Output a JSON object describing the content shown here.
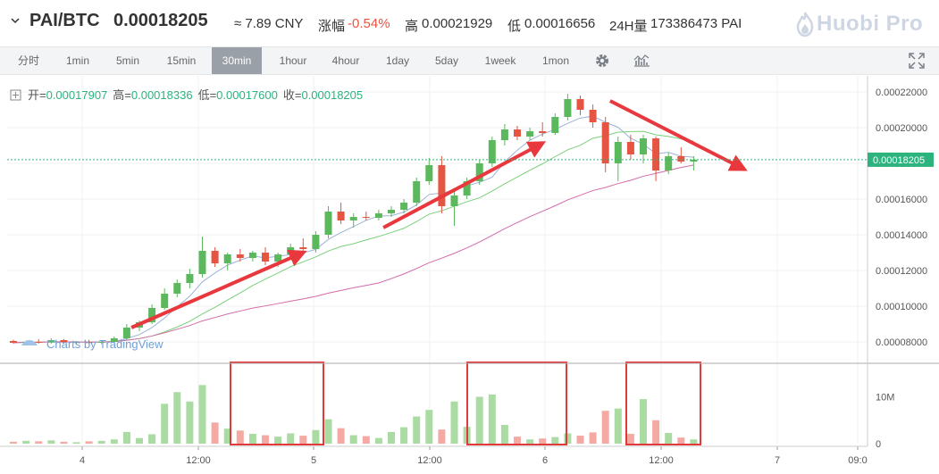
{
  "header": {
    "pair": "PAI/BTC",
    "price": "0.00018205",
    "cny": "≈ 7.89 CNY",
    "change_label": "涨幅",
    "change_value": "-0.54%",
    "high_label": "高",
    "high_value": "0.00021929",
    "low_label": "低",
    "low_value": "0.00016656",
    "volume_label": "24H量",
    "volume_value": "173386473 PAI",
    "logo": "Huobi Pro"
  },
  "toolbar": {
    "intervals": [
      "分时",
      "1min",
      "5min",
      "15min",
      "30min",
      "1hour",
      "4hour",
      "1day",
      "5day",
      "1week",
      "1mon"
    ],
    "active": "30min",
    "icons": [
      "settings-icon",
      "indicators-icon",
      "fullscreen-icon"
    ]
  },
  "ohlc": {
    "open_label": "开=",
    "open_value": "0.00017907",
    "high_label": "高=",
    "high_value": "0.00018336",
    "low_label": "低=",
    "low_value": "0.00017600",
    "close_label": "收=",
    "close_value": "0.00018205"
  },
  "watermark": "Charts by TradingView",
  "colors": {
    "up": "#5cb85c",
    "down": "#e55541",
    "ma_fast": "#9db2d8",
    "ma_mid": "#7bcf7b",
    "ma_slow": "#d46aa8",
    "arrow": "#e8383d",
    "box": "#e03a3a"
  },
  "chart_data": {
    "type": "candlestick",
    "price_axis_ticks": [
      "0.00022000",
      "0.00020000",
      "0.00018000",
      "0.00016000",
      "0.00014000",
      "0.00012000",
      "0.00010000",
      "0.00008000"
    ],
    "price_axis_values": [
      0.00022,
      0.0002,
      0.00018,
      0.00016,
      0.00014,
      0.00012,
      0.0001,
      8e-05
    ],
    "last_price_label": "0.00018205",
    "last_price": 0.00018205,
    "volume_axis_ticks": [
      "10M",
      "0"
    ],
    "volume_axis_values": [
      10000000,
      0
    ],
    "time_axis_ticks": [
      "4",
      "12:00",
      "5",
      "12:00",
      "6",
      "12:00",
      "7",
      "09:0"
    ],
    "time_axis_positions": [
      0.5,
      6,
      11.5,
      17,
      22.5,
      28,
      33.5,
      39
    ],
    "time_axis_unit": "hours_after_first_label_minus_offset",
    "ylim": [
      6.9e-05,
      0.000229
    ],
    "vlim": [
      0,
      16000000
    ],
    "candles": [
      {
        "t": 0,
        "o": 8.05e-05,
        "h": 8.12e-05,
        "l": 7.9e-05,
        "c": 7.95e-05,
        "v": 400000
      },
      {
        "t": 1,
        "o": 7.95e-05,
        "h": 8.08e-05,
        "l": 7.85e-05,
        "c": 8.01e-05,
        "v": 600000
      },
      {
        "t": 2,
        "o": 8.01e-05,
        "h": 8.15e-05,
        "l": 7.9e-05,
        "c": 7.96e-05,
        "v": 500000
      },
      {
        "t": 3,
        "o": 7.96e-05,
        "h": 8.2e-05,
        "l": 7.9e-05,
        "c": 8.1e-05,
        "v": 700000
      },
      {
        "t": 4,
        "o": 8.1e-05,
        "h": 8.16e-05,
        "l": 7.9e-05,
        "c": 7.97e-05,
        "v": 400000
      },
      {
        "t": 5,
        "o": 7.97e-05,
        "h": 8.05e-05,
        "l": 7.88e-05,
        "c": 7.99e-05,
        "v": 300000
      },
      {
        "t": 6,
        "o": 7.99e-05,
        "h": 8.12e-05,
        "l": 7.9e-05,
        "c": 7.95e-05,
        "v": 500000
      },
      {
        "t": 7,
        "o": 7.95e-05,
        "h": 8.1e-05,
        "l": 7.88e-05,
        "c": 8e-05,
        "v": 600000
      },
      {
        "t": 8,
        "o": 8e-05,
        "h": 8.3e-05,
        "l": 7.95e-05,
        "c": 8.2e-05,
        "v": 900000
      },
      {
        "t": 9,
        "o": 8.2e-05,
        "h": 9e-05,
        "l": 8.1e-05,
        "c": 8.8e-05,
        "v": 2500000
      },
      {
        "t": 10,
        "o": 8.8e-05,
        "h": 9.2e-05,
        "l": 8.6e-05,
        "c": 9.1e-05,
        "v": 1200000
      },
      {
        "t": 11,
        "o": 9.1e-05,
        "h": 0.000101,
        "l": 9e-05,
        "c": 9.9e-05,
        "v": 2000000
      },
      {
        "t": 12,
        "o": 9.9e-05,
        "h": 0.00011,
        "l": 9.8e-05,
        "c": 0.000107,
        "v": 8500000
      },
      {
        "t": 13,
        "o": 0.000107,
        "h": 0.000115,
        "l": 0.000105,
        "c": 0.000113,
        "v": 11000000
      },
      {
        "t": 14,
        "o": 0.000113,
        "h": 0.000121,
        "l": 0.00011,
        "c": 0.000118,
        "v": 9000000
      },
      {
        "t": 15,
        "o": 0.000118,
        "h": 0.000139,
        "l": 0.000116,
        "c": 0.000131,
        "v": 12500000
      },
      {
        "t": 16,
        "o": 0.000131,
        "h": 0.000133,
        "l": 0.000122,
        "c": 0.000124,
        "v": 4500000
      },
      {
        "t": 17,
        "o": 0.000124,
        "h": 0.00013,
        "l": 0.00012,
        "c": 0.000129,
        "v": 3200000
      },
      {
        "t": 18,
        "o": 0.000129,
        "h": 0.000132,
        "l": 0.000125,
        "c": 0.000127,
        "v": 2800000
      },
      {
        "t": 19,
        "o": 0.000127,
        "h": 0.000131,
        "l": 0.000125,
        "c": 0.00013,
        "v": 2100000
      },
      {
        "t": 20,
        "o": 0.00013,
        "h": 0.000133,
        "l": 0.000123,
        "c": 0.000125,
        "v": 1800000
      },
      {
        "t": 21,
        "o": 0.000125,
        "h": 0.00013,
        "l": 0.000122,
        "c": 0.000129,
        "v": 1500000
      },
      {
        "t": 22,
        "o": 0.000129,
        "h": 0.000135,
        "l": 0.000127,
        "c": 0.000133,
        "v": 2200000
      },
      {
        "t": 23,
        "o": 0.000133,
        "h": 0.000138,
        "l": 0.00013,
        "c": 0.000132,
        "v": 1700000
      },
      {
        "t": 24,
        "o": 0.000132,
        "h": 0.000142,
        "l": 0.00013,
        "c": 0.00014,
        "v": 2900000
      },
      {
        "t": 25,
        "o": 0.00014,
        "h": 0.000156,
        "l": 0.000138,
        "c": 0.000153,
        "v": 5200000
      },
      {
        "t": 26,
        "o": 0.000153,
        "h": 0.000158,
        "l": 0.000146,
        "c": 0.000148,
        "v": 3300000
      },
      {
        "t": 27,
        "o": 0.000148,
        "h": 0.000152,
        "l": 0.000144,
        "c": 0.00015,
        "v": 1800000
      },
      {
        "t": 28,
        "o": 0.00015,
        "h": 0.000153,
        "l": 0.000148,
        "c": 0.0001495,
        "v": 1600000
      },
      {
        "t": 29,
        "o": 0.0001495,
        "h": 0.000154,
        "l": 0.000148,
        "c": 0.000152,
        "v": 1200000
      },
      {
        "t": 30,
        "o": 0.000152,
        "h": 0.000156,
        "l": 0.00015,
        "c": 0.000154,
        "v": 2500000
      },
      {
        "t": 31,
        "o": 0.000154,
        "h": 0.00016,
        "l": 0.000152,
        "c": 0.000158,
        "v": 3500000
      },
      {
        "t": 32,
        "o": 0.000158,
        "h": 0.000172,
        "l": 0.000156,
        "c": 0.00017,
        "v": 5800000
      },
      {
        "t": 33,
        "o": 0.00017,
        "h": 0.000183,
        "l": 0.000168,
        "c": 0.000179,
        "v": 7200000
      },
      {
        "t": 34,
        "o": 0.000179,
        "h": 0.000184,
        "l": 0.000152,
        "c": 0.000156,
        "v": 3000000
      },
      {
        "t": 35,
        "o": 0.000156,
        "h": 0.000165,
        "l": 0.000145,
        "c": 0.000162,
        "v": 9000000
      },
      {
        "t": 36,
        "o": 0.000162,
        "h": 0.000172,
        "l": 0.00016,
        "c": 0.00017,
        "v": 3600000
      },
      {
        "t": 37,
        "o": 0.00017,
        "h": 0.000182,
        "l": 0.000168,
        "c": 0.00018,
        "v": 10000000
      },
      {
        "t": 38,
        "o": 0.00018,
        "h": 0.000195,
        "l": 0.000178,
        "c": 0.000193,
        "v": 10500000
      },
      {
        "t": 39,
        "o": 0.000193,
        "h": 0.000202,
        "l": 0.00019,
        "c": 0.000199,
        "v": 4000000
      },
      {
        "t": 40,
        "o": 0.000199,
        "h": 0.000201,
        "l": 0.000193,
        "c": 0.000195,
        "v": 1500000
      },
      {
        "t": 41,
        "o": 0.000195,
        "h": 0.0002,
        "l": 0.000193,
        "c": 0.000198,
        "v": 900000
      },
      {
        "t": 42,
        "o": 0.000198,
        "h": 0.000203,
        "l": 0.000195,
        "c": 0.000197,
        "v": 1100000
      },
      {
        "t": 43,
        "o": 0.000197,
        "h": 0.000208,
        "l": 0.000196,
        "c": 0.000206,
        "v": 1400000
      },
      {
        "t": 44,
        "o": 0.000206,
        "h": 0.000219,
        "l": 0.000204,
        "c": 0.000216,
        "v": 2200000
      },
      {
        "t": 45,
        "o": 0.000216,
        "h": 0.000218,
        "l": 0.000207,
        "c": 0.00021,
        "v": 1700000
      },
      {
        "t": 46,
        "o": 0.00021,
        "h": 0.000213,
        "l": 0.0002,
        "c": 0.000203,
        "v": 2400000
      },
      {
        "t": 47,
        "o": 0.000203,
        "h": 0.000206,
        "l": 0.000175,
        "c": 0.00018,
        "v": 7000000
      },
      {
        "t": 48,
        "o": 0.00018,
        "h": 0.000195,
        "l": 0.00017,
        "c": 0.000192,
        "v": 7500000
      },
      {
        "t": 49,
        "o": 0.000192,
        "h": 0.000196,
        "l": 0.000182,
        "c": 0.000185,
        "v": 2100000
      },
      {
        "t": 50,
        "o": 0.000185,
        "h": 0.000196,
        "l": 0.00018,
        "c": 0.000194,
        "v": 9500000
      },
      {
        "t": 51,
        "o": 0.000194,
        "h": 0.000195,
        "l": 0.00017,
        "c": 0.000176,
        "v": 5000000
      },
      {
        "t": 52,
        "o": 0.000176,
        "h": 0.000186,
        "l": 0.000174,
        "c": 0.000184,
        "v": 2300000
      },
      {
        "t": 53,
        "o": 0.000184,
        "h": 0.000189,
        "l": 0.00018,
        "c": 0.000181,
        "v": 1300000
      },
      {
        "t": 54,
        "o": 0.000181,
        "h": 0.000184,
        "l": 0.000176,
        "c": 0.0001821,
        "v": 900000
      }
    ]
  }
}
